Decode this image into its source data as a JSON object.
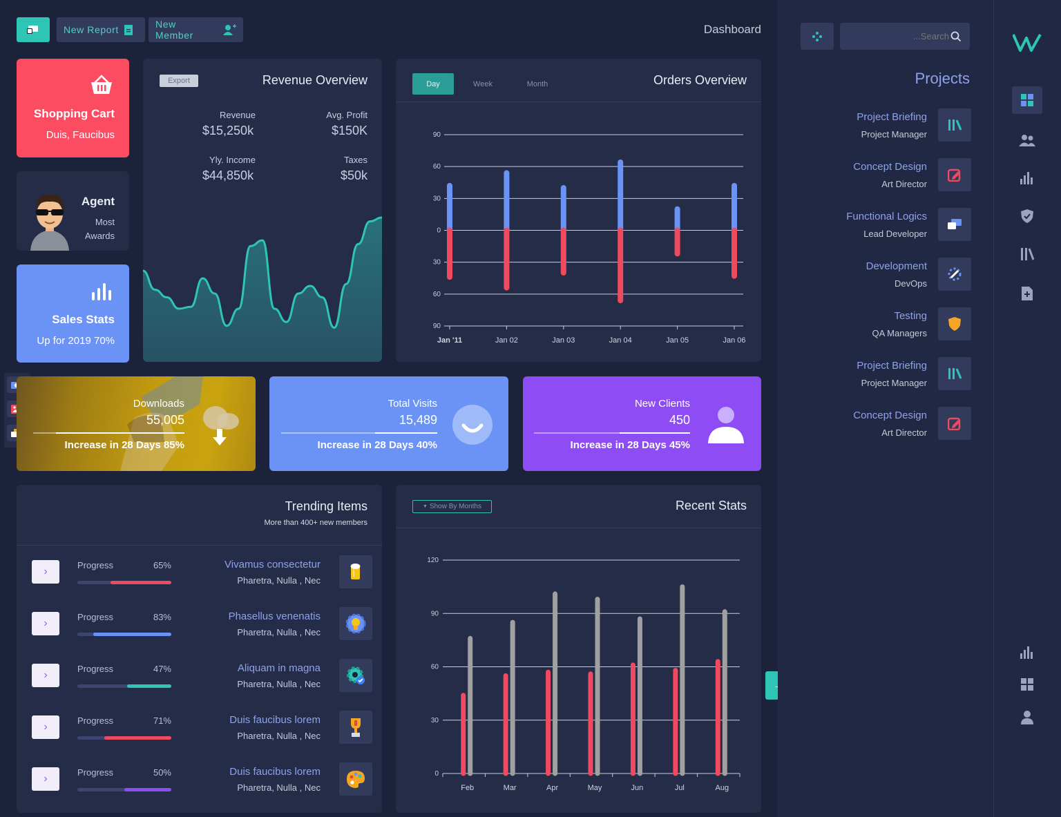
{
  "header": {
    "new_report": "New Report",
    "new_member": "New Member",
    "page_title": "Dashboard"
  },
  "search": {
    "placeholder": "...Search"
  },
  "tiles": {
    "shopping_cart": {
      "title": "Shopping Cart",
      "subtitle": "Duis, Faucibus",
      "color": "#fb4c62"
    },
    "agent": {
      "title": "Agent",
      "line1": "Most",
      "line2": "Awards"
    },
    "sales_stats": {
      "title": "Sales Stats",
      "subtitle": "Up for 2019 70%",
      "color": "#6b93f5"
    }
  },
  "revenue": {
    "title": "Revenue Overview",
    "export": "Export",
    "items": [
      {
        "label": "Revenue",
        "value": "$15,250k"
      },
      {
        "label": "Avg. Profit",
        "value": "$150K"
      },
      {
        "label": "Yly. Income",
        "value": "$44,850k"
      },
      {
        "label": "Taxes",
        "value": "$50k"
      }
    ]
  },
  "orders": {
    "title": "Orders Overview",
    "tabs": [
      "Day",
      "Week",
      "Month"
    ],
    "active_tab": "Day"
  },
  "stat_cards": [
    {
      "label": "Downloads",
      "value": "55,005",
      "footer": "Increase in 28 Days 85%",
      "progress": 0.85
    },
    {
      "label": "Total Visits",
      "value": "15,489",
      "footer": "Increase in 28 Days 40%",
      "progress": 0.4,
      "color": "#6b93f5"
    },
    {
      "label": "New Clients",
      "value": "450",
      "footer": "Increase in 28 Days 45%",
      "progress": 0.45,
      "color": "#8e4cf5"
    }
  ],
  "trending": {
    "title": "Trending Items",
    "subtitle": "More than 400+ new members",
    "rows": [
      {
        "label": "Progress",
        "pct": "65%",
        "value": 0.65,
        "color": "#f04a60",
        "name": "Vivamus consectetur",
        "sub": "Pharetra, Nulla , Nec",
        "icon": "beer-icon"
      },
      {
        "label": "Progress",
        "pct": "83%",
        "value": 0.83,
        "color": "#6b93f5",
        "name": "Phasellus venenatis",
        "sub": "Pharetra, Nulla , Nec",
        "icon": "gear-bulb-icon"
      },
      {
        "label": "Progress",
        "pct": "47%",
        "value": 0.47,
        "color": "#2ec4b6",
        "name": "Aliquam in magna",
        "sub": "Pharetra, Nulla , Nec",
        "icon": "cog-check-icon"
      },
      {
        "label": "Progress",
        "pct": "71%",
        "value": 0.71,
        "color": "#f04a60",
        "name": "Duis faucibus lorem",
        "sub": "Pharetra, Nulla , Nec",
        "icon": "trophy-icon"
      },
      {
        "label": "Progress",
        "pct": "50%",
        "value": 0.5,
        "color": "#8e4cf5",
        "name": "Duis faucibus lorem",
        "sub": "Pharetra, Nulla , Nec",
        "icon": "palette-icon"
      }
    ]
  },
  "recent": {
    "title": "Recent Stats",
    "filter": "Show By Months"
  },
  "projects": {
    "title": "Projects",
    "items": [
      {
        "title": "Project Briefing",
        "sub": "Project Manager",
        "icon": "library-icon"
      },
      {
        "title": "Concept Design",
        "sub": "Art Director",
        "icon": "edit-icon"
      },
      {
        "title": "Functional Logics",
        "sub": "Lead Developer",
        "icon": "chat-icon"
      },
      {
        "title": "Development",
        "sub": "DevOps",
        "icon": "tools-icon"
      },
      {
        "title": "Testing",
        "sub": "QA Managers",
        "icon": "shield-icon"
      },
      {
        "title": "Project Briefing",
        "sub": "Project Manager",
        "icon": "library-icon"
      },
      {
        "title": "Concept Design",
        "sub": "Art Director",
        "icon": "edit-icon"
      }
    ]
  },
  "colors": {
    "accent": "#2ec4b6",
    "red": "#f04a60",
    "blue": "#6b93f5",
    "purple": "#8e4cf5",
    "gray": "#a0a0a0"
  },
  "chart_data": [
    {
      "type": "bar",
      "title": "Orders Overview",
      "categories": [
        "Jan '11",
        "Jan 02",
        "Jan 03",
        "Jan 04",
        "Jan 05",
        "Jan 06"
      ],
      "series": [
        {
          "values": [
            42,
            54,
            40,
            64,
            20,
            42
          ]
        },
        {
          "values": [
            -44,
            -54,
            -40,
            -66,
            -22,
            -43
          ]
        }
      ],
      "ylim": [
        -90,
        90
      ],
      "y_ticks": [
        "90",
        "60",
        "30",
        "0",
        "30",
        "60",
        "90"
      ],
      "grid": true
    },
    {
      "type": "bar",
      "title": "Recent Stats",
      "categories": [
        "Feb",
        "Mar",
        "Apr",
        "May",
        "Jun",
        "Jul",
        "Aug"
      ],
      "series": [
        {
          "values": [
            44,
            55,
            57,
            56,
            61,
            58,
            63
          ]
        },
        {
          "values": [
            76,
            85,
            101,
            98,
            87,
            105,
            91
          ]
        }
      ],
      "ylim": [
        0,
        120
      ],
      "y_ticks": [
        "0",
        "30",
        "60",
        "90",
        "120"
      ],
      "grid": true
    },
    {
      "type": "area",
      "title": "Revenue Overview",
      "x": [
        0,
        1,
        2,
        3,
        4,
        5,
        6,
        7,
        8,
        9,
        10,
        11,
        12,
        13,
        14,
        15,
        16,
        17,
        18,
        19,
        20
      ],
      "values": [
        32,
        22,
        18,
        12,
        13,
        28,
        20,
        3,
        12,
        45,
        48,
        12,
        5,
        20,
        24,
        18,
        2,
        25,
        46,
        58,
        60
      ]
    }
  ]
}
